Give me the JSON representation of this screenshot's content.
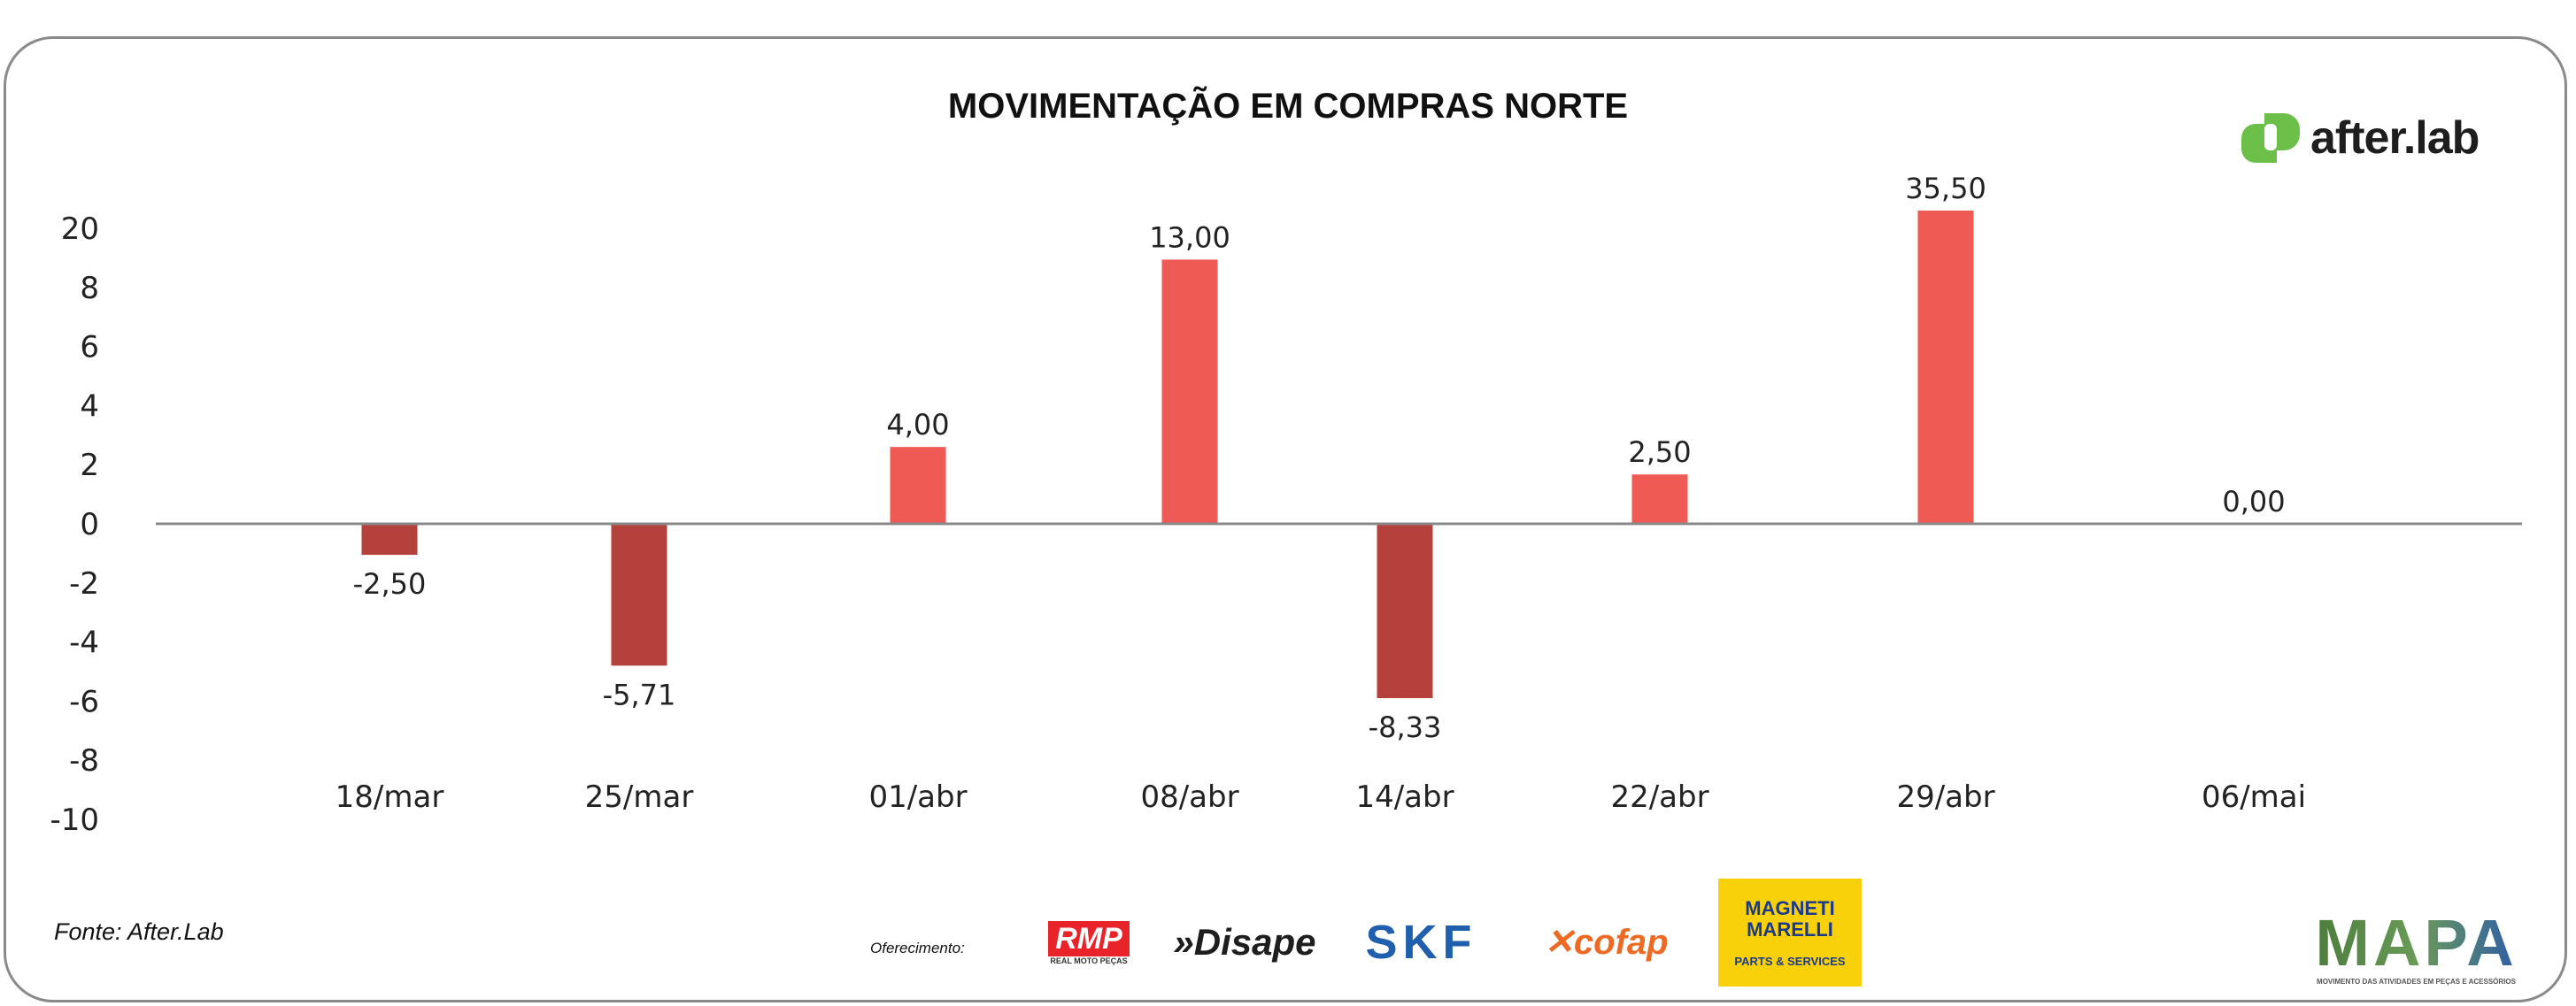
{
  "chart_data": {
    "type": "bar",
    "title": "MOVIMENTAÇÃO EM COMPRAS NORTE",
    "categories": [
      "18/mar",
      "25/mar",
      "01/abr",
      "08/abr",
      "14/abr",
      "22/abr",
      "29/abr",
      "06/mai"
    ],
    "values": [
      -2.5,
      -5.71,
      4.0,
      13.0,
      -8.33,
      2.5,
      35.5,
      0.0
    ],
    "value_labels": [
      "-2,50",
      "-5,71",
      "4,00",
      "13,00",
      "-8,33",
      "2,50",
      "35,50",
      "0,00"
    ],
    "y_tick_labels": [
      "-10",
      "-8",
      "-6",
      "-4",
      "-2",
      "0",
      "2",
      "4",
      "6",
      "8",
      "20"
    ],
    "xlabel": "",
    "ylabel": "",
    "grid": false,
    "legend": "none",
    "colors": {
      "positive": "#F05A55",
      "negative": "#B5413D",
      "axis": "#888888"
    }
  },
  "footer": {
    "source": "Fonte: After.Lab",
    "sponsor_label": "Oferecimento:",
    "sponsors": [
      "RMP Real Moto Peças",
      "Disape",
      "SKF",
      "cofap",
      "Magneti Marelli Parts & Services"
    ],
    "mapa": "MAPA"
  },
  "brand": {
    "name": "after.lab",
    "color": "#6CC04A"
  }
}
